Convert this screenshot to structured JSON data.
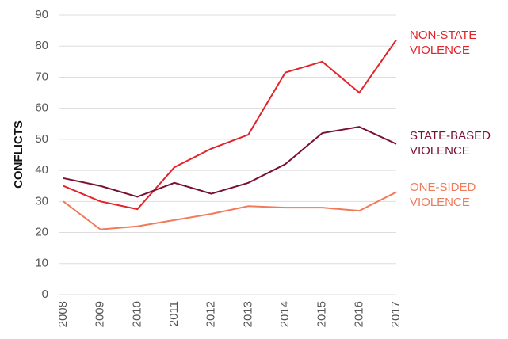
{
  "chart_data": {
    "type": "line",
    "ylabel": "CONFLICTS",
    "categories": [
      "2008",
      "2009",
      "2010",
      "2011",
      "2012",
      "2013",
      "2014",
      "2015",
      "2016",
      "2017"
    ],
    "series": [
      {
        "name": "NON-STATE VIOLENCE",
        "color": "#e3242b",
        "values": [
          35,
          30,
          27.5,
          41,
          47,
          51.5,
          71.5,
          75,
          65,
          82
        ]
      },
      {
        "name": "STATE-BASED VIOLENCE",
        "color": "#7a1030",
        "values": [
          37.5,
          35,
          31.5,
          36,
          32.5,
          36,
          42,
          52,
          54,
          48.5
        ]
      },
      {
        "name": "ONE-SIDED VIOLENCE",
        "color": "#f07a5a",
        "values": [
          30,
          21,
          22,
          24,
          26,
          28.5,
          28,
          28,
          27,
          33
        ]
      }
    ],
    "ylim": [
      0,
      90
    ],
    "yticks": [
      0,
      10,
      20,
      30,
      40,
      50,
      60,
      70,
      80,
      90
    ],
    "grid": true
  }
}
